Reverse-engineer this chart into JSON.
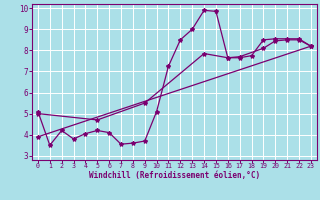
{
  "xlabel": "Windchill (Refroidissement éolien,°C)",
  "background_color": "#abe0e8",
  "grid_color": "#ffffff",
  "line_color": "#7b0070",
  "xlim": [
    -0.5,
    23.5
  ],
  "ylim": [
    2.8,
    10.2
  ],
  "xticks": [
    0,
    1,
    2,
    3,
    4,
    5,
    6,
    7,
    8,
    9,
    10,
    11,
    12,
    13,
    14,
    15,
    16,
    17,
    18,
    19,
    20,
    21,
    22,
    23
  ],
  "yticks": [
    3,
    4,
    5,
    6,
    7,
    8,
    9,
    10
  ],
  "line1_x": [
    0,
    1,
    2,
    3,
    4,
    5,
    6,
    7,
    8,
    9,
    10,
    11,
    12,
    13,
    14,
    15,
    16,
    17,
    18,
    19,
    20,
    21,
    22,
    23
  ],
  "line1_y": [
    5.1,
    3.5,
    4.2,
    3.8,
    4.05,
    4.2,
    4.1,
    3.55,
    3.6,
    3.7,
    5.1,
    7.25,
    8.5,
    9.0,
    9.9,
    9.85,
    7.65,
    7.65,
    7.75,
    8.5,
    8.55,
    8.55,
    8.55,
    8.2
  ],
  "line2_x": [
    0,
    23
  ],
  "line2_y": [
    3.9,
    8.2
  ],
  "line3_x": [
    0,
    5,
    9,
    14,
    16,
    17,
    19,
    20,
    21,
    22,
    23
  ],
  "line3_y": [
    5.0,
    4.7,
    5.5,
    7.85,
    7.65,
    7.7,
    8.1,
    8.45,
    8.5,
    8.5,
    8.2
  ]
}
